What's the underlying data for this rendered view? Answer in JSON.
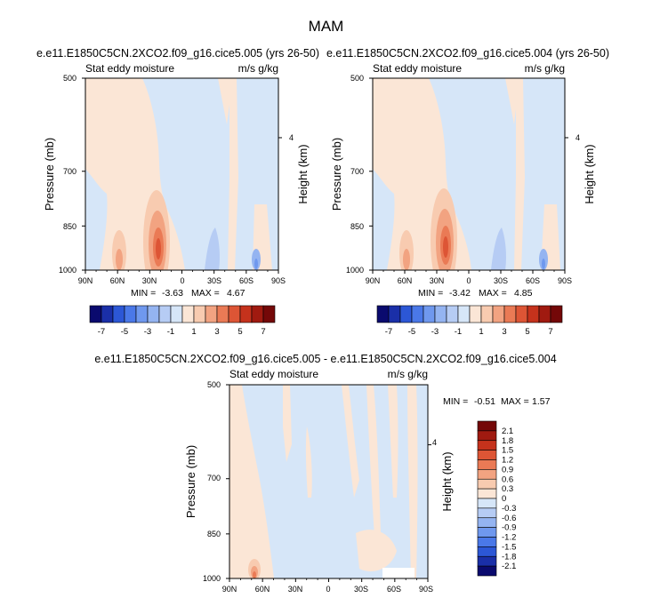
{
  "main_title": "MAM",
  "chart_data": [
    {
      "type": "heatmap",
      "id": "p1",
      "title": "e.e11.E1850C5CN.2XCO2.f09_g16.cice5.005 (yrs 26-50)",
      "left_label": "Stat eddy moisture",
      "right_label": "m/s g/kg",
      "ylabel": "Pressure (mb)",
      "ylabel_right": "Height (km)",
      "xticks": [
        "90N",
        "60N",
        "30N",
        "0",
        "30S",
        "60S",
        "90S"
      ],
      "yticks": [
        "500",
        "700",
        "850",
        "1000"
      ],
      "right_tick": "4",
      "min_label": "MIN =",
      "min_value": "-3.63",
      "max_label": "MAX =",
      "max_value": "4.67",
      "xlim": [
        90,
        -90
      ],
      "ylim": [
        1000,
        500
      ],
      "colorbar": {
        "orientation": "horizontal",
        "labels": [
          "-7",
          "-5",
          "-3",
          "-1",
          "1",
          "3",
          "5",
          "7"
        ]
      }
    },
    {
      "type": "heatmap",
      "id": "p2",
      "title": "e.e11.E1850C5CN.2XCO2.f09_g16.cice5.004 (yrs 26-50)",
      "left_label": "Stat eddy moisture",
      "right_label": "m/s g/kg",
      "ylabel": "Pressure (mb)",
      "ylabel_right": "Height (km)",
      "xticks": [
        "90N",
        "60N",
        "30N",
        "0",
        "30S",
        "60S",
        "90S"
      ],
      "yticks": [
        "500",
        "700",
        "850",
        "1000"
      ],
      "right_tick": "4",
      "min_label": "MIN =",
      "min_value": "-3.42",
      "max_label": "MAX =",
      "max_value": "4.85",
      "xlim": [
        90,
        -90
      ],
      "ylim": [
        1000,
        500
      ],
      "colorbar": {
        "orientation": "horizontal",
        "labels": [
          "-7",
          "-5",
          "-3",
          "-1",
          "1",
          "3",
          "5",
          "7"
        ]
      }
    },
    {
      "type": "heatmap",
      "id": "p3",
      "title": "e.e11.E1850C5CN.2XCO2.f09_g16.cice5.005 - e.e11.E1850C5CN.2XCO2.f09_g16.cice5.004",
      "left_label": "Stat eddy moisture",
      "right_label": "m/s g/kg",
      "ylabel": "Pressure (mb)",
      "ylabel_right": "Height (km)",
      "xticks": [
        "90N",
        "60N",
        "30N",
        "0",
        "30S",
        "60S",
        "90S"
      ],
      "yticks": [
        "500",
        "700",
        "850",
        "1000"
      ],
      "right_tick": "4",
      "min_label": "MIN =",
      "min_value": "-0.51",
      "max_label": "MAX =",
      "max_value": "1.57",
      "xlim": [
        90,
        -90
      ],
      "ylim": [
        1000,
        500
      ],
      "colorbar": {
        "orientation": "vertical",
        "labels": [
          "2.1",
          "1.8",
          "1.5",
          "1.2",
          "0.9",
          "0.6",
          "0.3",
          "0",
          "-0.3",
          "-0.6",
          "-0.9",
          "-1.2",
          "-1.5",
          "-1.8",
          "-2.1"
        ]
      }
    }
  ],
  "palette": [
    "#0a0a6e",
    "#1a2fa8",
    "#2c57d6",
    "#4a78e8",
    "#6f98ee",
    "#94b4f1",
    "#b6ccf4",
    "#d6e6f8",
    "#fbe6d6",
    "#f8cbb0",
    "#f2a381",
    "#ea7a55",
    "#dd5535",
    "#c5321c",
    "#a01a10",
    "#740808"
  ],
  "colors": {
    "light_blue": "#d6e6f8",
    "light_orange": "#fbe6d6"
  }
}
